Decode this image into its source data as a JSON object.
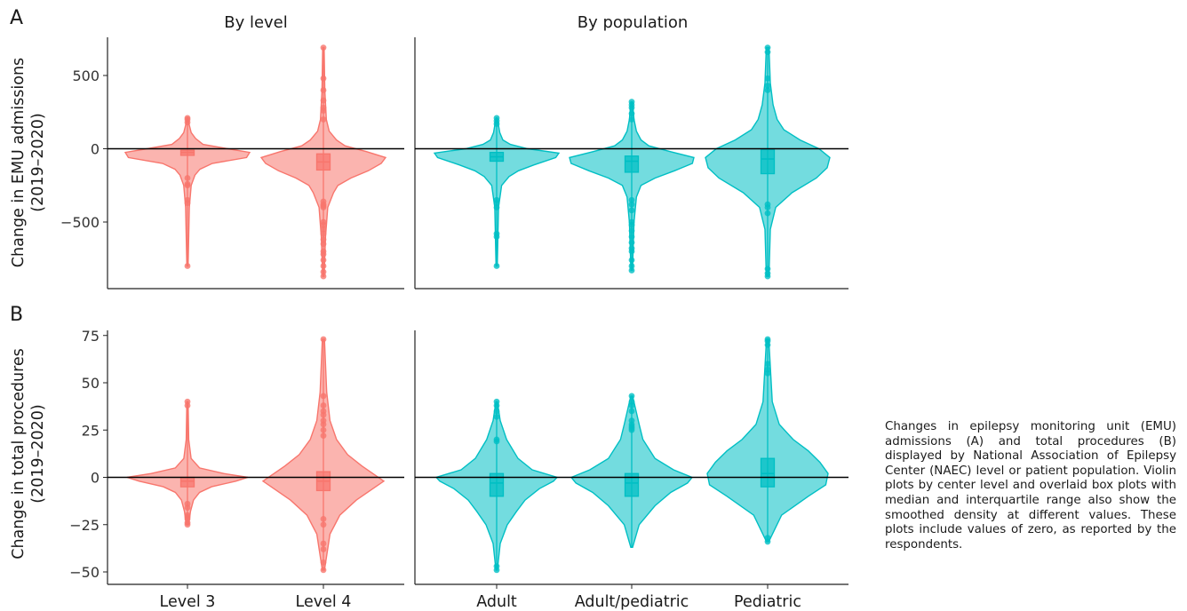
{
  "panel_labels": [
    "A",
    "B"
  ],
  "column_titles": [
    "By level",
    "By population"
  ],
  "caption": "Changes in epilepsy monitoring unit (EMU) admissions (A) and total procedures (B) displayed by National Association of Epilepsy Center (NAEC) level or patient population. Violin plots by center level and overlaid box plots with median and interquartile range also show the smoothed density at different values. These plots include values of zero, as reported by the respondents.",
  "colors": {
    "level": "#F8766D",
    "population": "#00BFC4"
  },
  "chart_data": [
    {
      "type": "violin",
      "panel": "A",
      "facet": "By level",
      "ylabel": "Change in EMU admissions\n(2019–2020)",
      "yticks": [
        500,
        0,
        -500
      ],
      "ylim": [
        -950,
        740
      ],
      "reference_line": 0,
      "categories": [
        "Level 3",
        "Level 4"
      ],
      "groups": [
        {
          "category": "Level 3",
          "q1": -45,
          "median": -25,
          "q3": -10,
          "whisker_low": -150,
          "whisker_high": 120,
          "min": -800,
          "max": 210,
          "outliers": [
            210,
            200,
            180,
            -200,
            -240,
            -250,
            -350,
            -370,
            -800
          ],
          "density": [
            [
              -800,
              0.01
            ],
            [
              -400,
              0.03
            ],
            [
              -250,
              0.06
            ],
            [
              -180,
              0.12
            ],
            [
              -140,
              0.2
            ],
            [
              -100,
              0.4
            ],
            [
              -60,
              0.95
            ],
            [
              -25,
              1.0
            ],
            [
              0,
              0.65
            ],
            [
              30,
              0.25
            ],
            [
              70,
              0.13
            ],
            [
              110,
              0.06
            ],
            [
              160,
              0.03
            ],
            [
              210,
              0.01
            ]
          ]
        },
        {
          "category": "Level 4",
          "q1": -145,
          "median": -90,
          "q3": -35,
          "whisker_low": -330,
          "whisker_high": 190,
          "min": -870,
          "max": 690,
          "outliers": [
            690,
            480,
            400,
            330,
            280,
            260,
            200,
            -360,
            -380,
            -390,
            -400,
            -500,
            -520,
            -550,
            -580,
            -620,
            -650,
            -700,
            -720,
            -760,
            -800,
            -840,
            -870
          ],
          "density": [
            [
              -870,
              0.01
            ],
            [
              -600,
              0.03
            ],
            [
              -400,
              0.06
            ],
            [
              -300,
              0.14
            ],
            [
              -250,
              0.2
            ],
            [
              -200,
              0.38
            ],
            [
              -150,
              0.62
            ],
            [
              -100,
              0.8
            ],
            [
              -60,
              0.86
            ],
            [
              -20,
              0.6
            ],
            [
              20,
              0.3
            ],
            [
              60,
              0.18
            ],
            [
              120,
              0.08
            ],
            [
              200,
              0.04
            ],
            [
              400,
              0.02
            ],
            [
              690,
              0.01
            ]
          ]
        }
      ]
    },
    {
      "type": "violin",
      "panel": "A",
      "facet": "By population",
      "categories": [
        "Adult",
        "Adult/pediatric",
        "Pediatric"
      ],
      "groups": [
        {
          "category": "Adult",
          "q1": -85,
          "median": -55,
          "q3": -25,
          "whisker_low": -210,
          "whisker_high": 70,
          "min": -800,
          "max": 210,
          "outliers": [
            210,
            190,
            170,
            -350,
            -370,
            -400,
            -580,
            -600,
            -800
          ],
          "density": [
            [
              -800,
              0.01
            ],
            [
              -400,
              0.03
            ],
            [
              -250,
              0.08
            ],
            [
              -190,
              0.2
            ],
            [
              -150,
              0.35
            ],
            [
              -110,
              0.6
            ],
            [
              -60,
              0.95
            ],
            [
              -30,
              1.0
            ],
            [
              0,
              0.5
            ],
            [
              30,
              0.22
            ],
            [
              60,
              0.1
            ],
            [
              110,
              0.05
            ],
            [
              210,
              0.01
            ]
          ]
        },
        {
          "category": "Adult/pediatric",
          "q1": -160,
          "median": -85,
          "q3": -50,
          "whisker_low": -330,
          "whisker_high": 80,
          "min": -830,
          "max": 320,
          "outliers": [
            320,
            300,
            280,
            240,
            200,
            -350,
            -380,
            -420,
            -500,
            -520,
            -560,
            -600,
            -640,
            -680,
            -700,
            -760,
            -800,
            -830
          ],
          "density": [
            [
              -830,
              0.01
            ],
            [
              -500,
              0.03
            ],
            [
              -330,
              0.06
            ],
            [
              -250,
              0.12
            ],
            [
              -200,
              0.3
            ],
            [
              -150,
              0.55
            ],
            [
              -100,
              0.78
            ],
            [
              -60,
              0.8
            ],
            [
              -20,
              0.5
            ],
            [
              20,
              0.22
            ],
            [
              60,
              0.12
            ],
            [
              120,
              0.06
            ],
            [
              200,
              0.03
            ],
            [
              320,
              0.01
            ]
          ]
        },
        {
          "category": "Pediatric",
          "q1": -170,
          "median": -70,
          "q3": -5,
          "whisker_low": -370,
          "whisker_high": 180,
          "min": -870,
          "max": 690,
          "outliers": [
            690,
            660,
            480,
            430,
            400,
            -380,
            -400,
            -440,
            -820,
            -850,
            -870
          ],
          "density": [
            [
              -870,
              0.01
            ],
            [
              -550,
              0.02
            ],
            [
              -400,
              0.06
            ],
            [
              -300,
              0.18
            ],
            [
              -200,
              0.36
            ],
            [
              -130,
              0.44
            ],
            [
              -60,
              0.46
            ],
            [
              0,
              0.38
            ],
            [
              60,
              0.24
            ],
            [
              130,
              0.12
            ],
            [
              200,
              0.07
            ],
            [
              300,
              0.04
            ],
            [
              450,
              0.02
            ],
            [
              690,
              0.01
            ]
          ]
        }
      ]
    },
    {
      "type": "violin",
      "panel": "B",
      "facet": "By level",
      "ylabel": "Change in total procedures\n(2019–2020)",
      "yticks": [
        75,
        50,
        25,
        0,
        -25,
        -50
      ],
      "ylim": [
        -55,
        79
      ],
      "reference_line": 0,
      "categories": [
        "Level 3",
        "Level 4"
      ],
      "groups": [
        {
          "category": "Level 3",
          "q1": -5,
          "median": -2,
          "q3": 0,
          "whisker_low": -10,
          "whisker_high": 6,
          "min": -25,
          "max": 40,
          "outliers": [
            40,
            38,
            -14,
            -16,
            -20,
            -21,
            -22,
            -24,
            -25
          ],
          "density": [
            [
              -25,
              0.02
            ],
            [
              -18,
              0.05
            ],
            [
              -12,
              0.1
            ],
            [
              -8,
              0.2
            ],
            [
              -5,
              0.4
            ],
            [
              -2,
              0.8
            ],
            [
              0,
              1.0
            ],
            [
              2,
              0.6
            ],
            [
              5,
              0.2
            ],
            [
              10,
              0.06
            ],
            [
              20,
              0.02
            ],
            [
              40,
              0.01
            ]
          ]
        },
        {
          "category": "Level 4",
          "q1": -7,
          "median": -2,
          "q3": 3,
          "whisker_low": -20,
          "whisker_high": 20,
          "min": -49,
          "max": 73,
          "outliers": [
            73,
            43,
            38,
            35,
            33,
            30,
            28,
            25,
            22,
            -22,
            -25,
            -35,
            -38,
            -45,
            -49
          ],
          "density": [
            [
              -49,
              0.01
            ],
            [
              -30,
              0.06
            ],
            [
              -20,
              0.15
            ],
            [
              -12,
              0.3
            ],
            [
              -6,
              0.45
            ],
            [
              -2,
              0.55
            ],
            [
              2,
              0.45
            ],
            [
              6,
              0.35
            ],
            [
              12,
              0.22
            ],
            [
              20,
              0.12
            ],
            [
              30,
              0.06
            ],
            [
              45,
              0.03
            ],
            [
              73,
              0.01
            ]
          ]
        }
      ]
    },
    {
      "type": "violin",
      "panel": "B",
      "facet": "By population",
      "categories": [
        "Adult",
        "Adult/pediatric",
        "Pediatric"
      ],
      "groups": [
        {
          "category": "Adult",
          "q1": -10,
          "median": -3,
          "q3": 2,
          "whisker_low": -28,
          "whisker_high": 22,
          "min": -49,
          "max": 40,
          "outliers": [
            40,
            38,
            35,
            32,
            20,
            19,
            -47,
            -49
          ],
          "density": [
            [
              -49,
              0.01
            ],
            [
              -35,
              0.05
            ],
            [
              -25,
              0.15
            ],
            [
              -18,
              0.28
            ],
            [
              -12,
              0.4
            ],
            [
              -6,
              0.6
            ],
            [
              -2,
              0.8
            ],
            [
              0,
              0.85
            ],
            [
              4,
              0.5
            ],
            [
              10,
              0.3
            ],
            [
              20,
              0.14
            ],
            [
              30,
              0.05
            ],
            [
              40,
              0.01
            ]
          ]
        },
        {
          "category": "Adult/pediatric",
          "q1": -10,
          "median": -3,
          "q3": 2,
          "whisker_low": -37,
          "whisker_high": 20,
          "min": -37,
          "max": 43,
          "outliers": [
            43,
            40,
            38,
            35,
            30,
            28,
            27,
            26,
            25
          ],
          "density": [
            [
              -37,
              0.01
            ],
            [
              -25,
              0.08
            ],
            [
              -15,
              0.25
            ],
            [
              -8,
              0.42
            ],
            [
              -3,
              0.6
            ],
            [
              0,
              0.65
            ],
            [
              4,
              0.45
            ],
            [
              10,
              0.25
            ],
            [
              20,
              0.12
            ],
            [
              28,
              0.08
            ],
            [
              43,
              0.01
            ]
          ]
        },
        {
          "category": "Pediatric",
          "q1": -5,
          "median": 2,
          "q3": 10,
          "whisker_low": -33,
          "whisker_high": 40,
          "min": -34,
          "max": 73,
          "outliers": [
            73,
            72,
            70,
            60,
            57,
            55,
            -32,
            -34
          ],
          "density": [
            [
              -34,
              0.01
            ],
            [
              -20,
              0.12
            ],
            [
              -10,
              0.35
            ],
            [
              -4,
              0.5
            ],
            [
              2,
              0.52
            ],
            [
              8,
              0.45
            ],
            [
              14,
              0.35
            ],
            [
              20,
              0.22
            ],
            [
              28,
              0.1
            ],
            [
              40,
              0.04
            ],
            [
              73,
              0.01
            ]
          ]
        }
      ]
    }
  ]
}
